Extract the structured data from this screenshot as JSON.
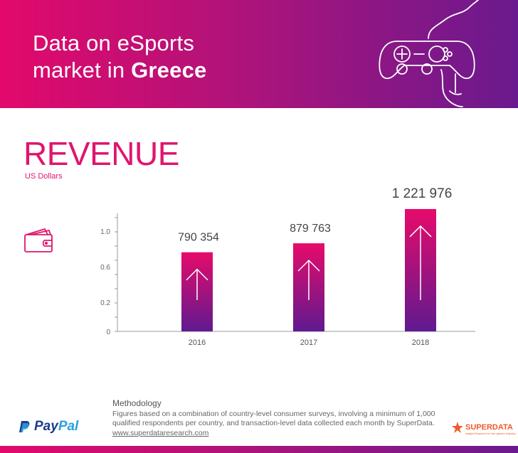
{
  "header": {
    "title_line1": "Data on eSports",
    "title_line2_prefix": "market in ",
    "title_line2_bold": "Greece"
  },
  "revenue": {
    "title": "REVENUE",
    "unit": "US Dollars"
  },
  "chart_data": {
    "type": "bar",
    "title": "REVENUE",
    "ylabel": "US Dollars",
    "categories": [
      "2016",
      "2017",
      "2018"
    ],
    "values": [
      790354,
      879763,
      1221976
    ],
    "value_labels": [
      "790 354",
      "879 763",
      "1 221 976"
    ],
    "y_tick_labels": [
      "0",
      "0.2",
      "0.6",
      "1.0"
    ],
    "colors": {
      "bar_top": "#e60b6a",
      "bar_bottom": "#5f1a90",
      "axis": "#999999"
    }
  },
  "methodology": {
    "title": "Methodology",
    "text": "Figures based on a combination of country-level consumer surveys, involving a minimum of 1,000 qualified respondents per country, and transaction-level data collected each month by SuperData.",
    "link": "www.superdataresearch.com"
  },
  "logos": {
    "paypal_part1": "Pay",
    "paypal_part2": "Pal",
    "superdata": "SUPERDATA",
    "superdata_tagline": "Insight Research for the games industry"
  },
  "colors": {
    "accent": "#e0156d",
    "gradient_start": "#e2096b",
    "gradient_end": "#6a1a8e"
  }
}
